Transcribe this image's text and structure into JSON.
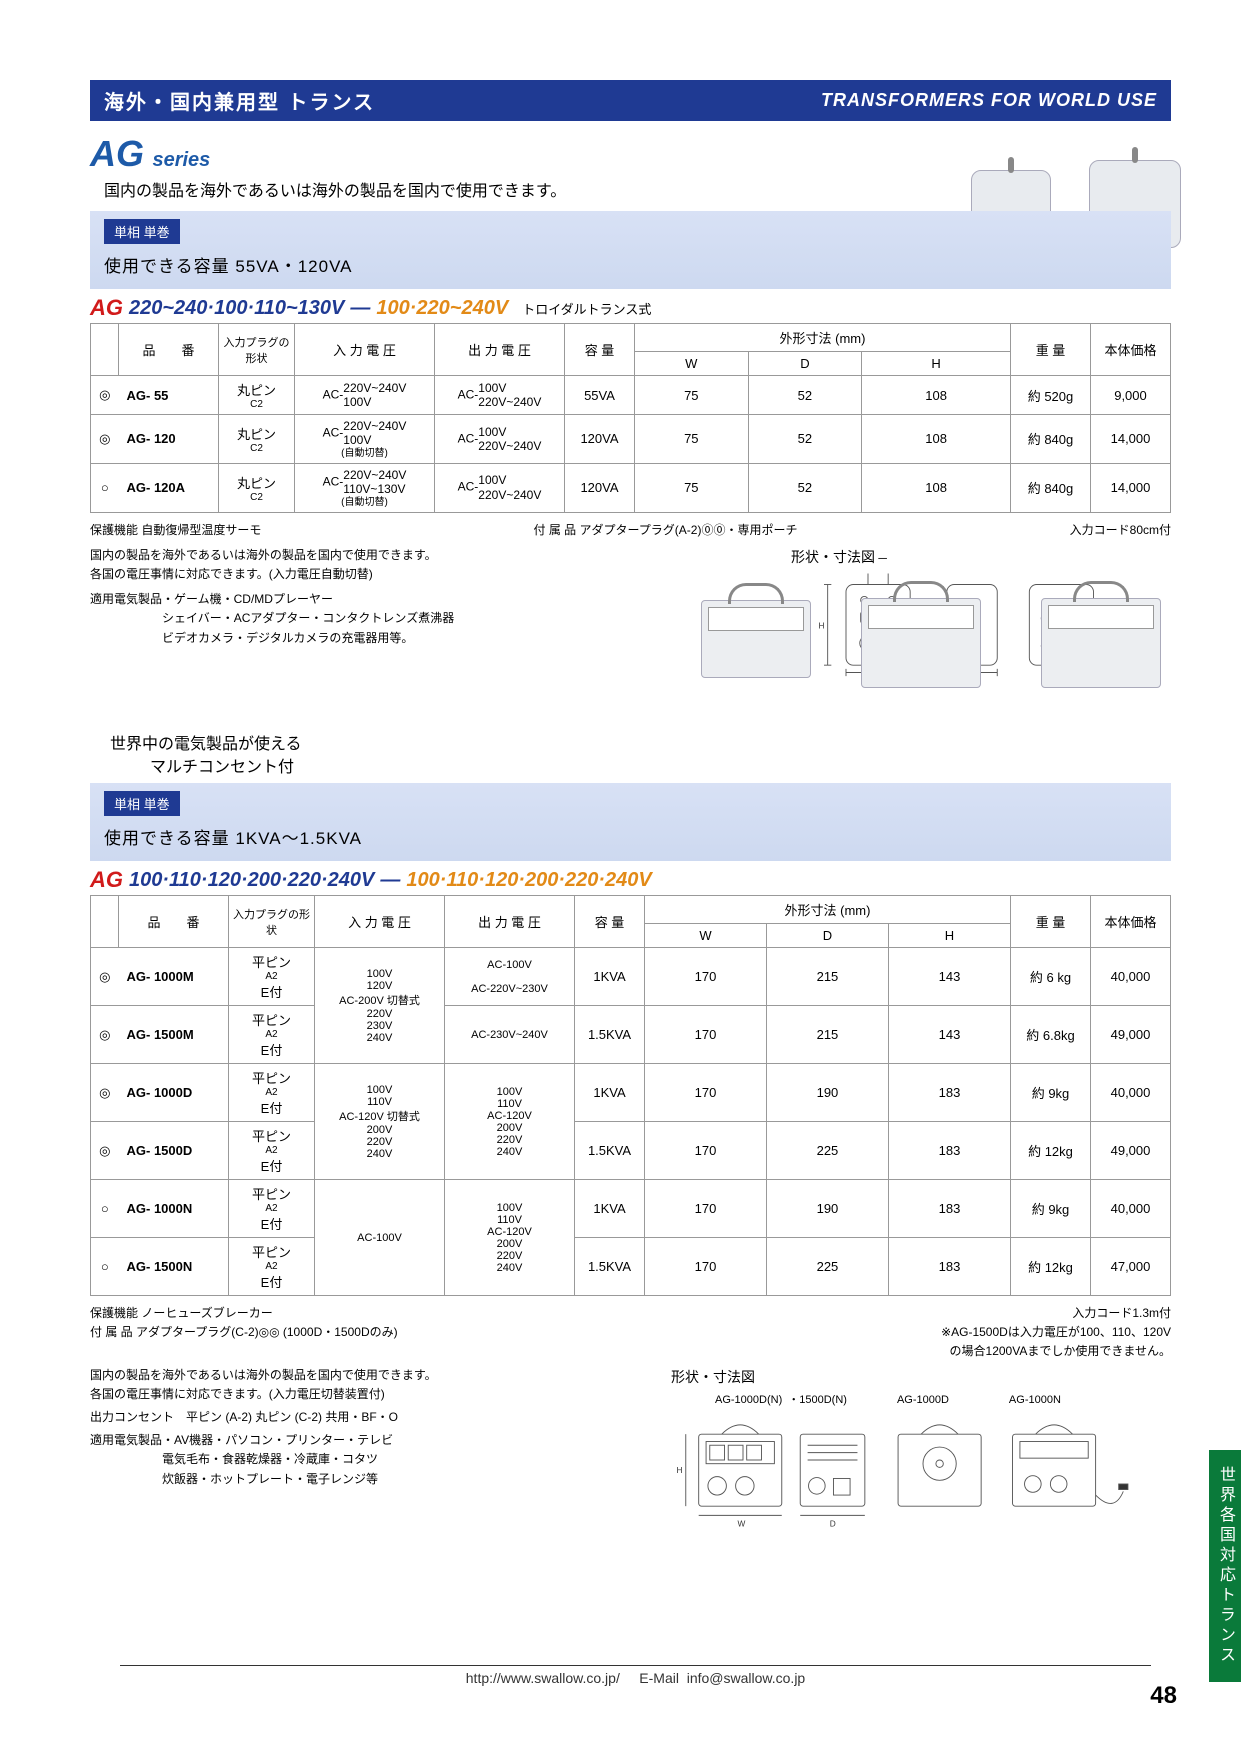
{
  "header": {
    "jp": "海外・国内兼用型 トランス",
    "en": "TRANSFORMERS FOR WORLD USE"
  },
  "series": {
    "ag": "AG",
    "word": "series",
    "sub": "国内の製品を海外であるいは海外の製品を国内で使用できます。"
  },
  "section1": {
    "chip": "単相 単巻",
    "capacity": "使用できる容量  55VA・120VA",
    "volt_ag": "AG",
    "volt_blue": "220~240·100·110~130V",
    "volt_dash": "—",
    "volt_orange": "100·220~240V",
    "volt_note": "トロイダルトランス式",
    "columns": {
      "model": "品　　番",
      "plug": "入力プラグの形状",
      "vin": "入 力 電 圧",
      "vout": "出 力 電 圧",
      "cap": "容 量",
      "dims": "外形寸法 (mm)",
      "w": "W",
      "d": "D",
      "h": "H",
      "weight": "重 量",
      "price": "本体価格"
    },
    "rows": [
      {
        "mark": "◎",
        "model": "AG- 55",
        "plug": "丸ピン",
        "plug2": "C2",
        "vin_prefix": "AC-",
        "vin1": "220V~240V",
        "vin2": "100V",
        "vin3": "",
        "vout_prefix": "AC-",
        "vout1": "100V",
        "vout2": "220V~240V",
        "cap": "55VA",
        "w": "75",
        "d": "52",
        "h": "108",
        "wt": "約 520g",
        "price": "9,000"
      },
      {
        "mark": "◎",
        "model": "AG- 120",
        "plug": "丸ピン",
        "plug2": "C2",
        "vin_prefix": "AC-",
        "vin1": "220V~240V",
        "vin2": "100V",
        "vin3": "(自動切替)",
        "vout_prefix": "AC-",
        "vout1": "100V",
        "vout2": "220V~240V",
        "cap": "120VA",
        "w": "75",
        "d": "52",
        "h": "108",
        "wt": "約 840g",
        "price": "14,000"
      },
      {
        "mark": "○",
        "model": "AG- 120A",
        "plug": "丸ピン",
        "plug2": "C2",
        "vin_prefix": "AC-",
        "vin1": "220V~240V",
        "vin2": "110V~130V",
        "vin3": "(自動切替)",
        "vout_prefix": "AC-",
        "vout1": "100V",
        "vout2": "220V~240V",
        "cap": "120VA",
        "w": "75",
        "d": "52",
        "h": "108",
        "wt": "約 840g",
        "price": "14,000"
      }
    ],
    "notes": {
      "l1a": "保護機能 自動復帰型温度サーモ",
      "l1b": "付 属 品 アダプタープラグ(A-2)⓪⓪・専用ポーチ",
      "l1c": "入力コード80cm付",
      "l2": "国内の製品を海外であるいは海外の製品を国内で使用できます。",
      "l3": "各国の電圧事情に対応できます。(入力電圧自動切替)",
      "l4": "適用電気製品・ゲーム機・CD/MDプレーヤー",
      "l5": "　　　　　　シェイバー・ACアダプター・コンタクトレンズ煮沸器",
      "l6": "　　　　　　ビデオカメラ・デジタルカメラの充電器用等。",
      "dims_title": "形状・寸法図"
    }
  },
  "section2": {
    "pre1": "世界中の電気製品が使える",
    "pre2": "マルチコンセント付",
    "chip": "単相 単巻",
    "capacity": "使用できる容量  1KVA～1.5KVA",
    "volt_ag": "AG",
    "volt_blue": "100·110·120·200·220·240V",
    "volt_dash": "—",
    "volt_orange": "100·110·120·200·220·240V",
    "columns": {
      "model": "品　　番",
      "plug": "入力プラグの形状",
      "vin": "入 力 電 圧",
      "vout": "出 力 電 圧",
      "cap": "容 量",
      "dims": "外形寸法 (mm)",
      "w": "W",
      "d": "D",
      "h": "H",
      "weight": "重 量",
      "price": "本体価格"
    },
    "vin_group1": "100V\n120V\nAC-200V 切替式\n220V\n230V\n240V",
    "vout_group1_a": "AC-100V",
    "vout_group1_b": "AC-220V~230V",
    "vout_group1_c": "AC-230V~240V",
    "vin_group2": "100V\n110V\nAC-120V 切替式\n200V\n220V\n240V",
    "vout_group2": "100V\n110V\nAC-120V\n200V\n220V\n240V",
    "vin_group3": "AC-100V",
    "vout_group3": "100V\n110V\nAC-120V\n200V\n220V\n240V",
    "rows": [
      {
        "mark": "◎",
        "model": "AG- 1000M",
        "plug": "平ピン",
        "plug2": "A2",
        "plug3": "E付",
        "cap": "1KVA",
        "w": "170",
        "d": "215",
        "h": "143",
        "wt": "約 6 kg",
        "price": "40,000"
      },
      {
        "mark": "◎",
        "model": "AG- 1500M",
        "plug": "平ピン",
        "plug2": "A2",
        "plug3": "E付",
        "cap": "1.5KVA",
        "w": "170",
        "d": "215",
        "h": "143",
        "wt": "約 6.8kg",
        "price": "49,000"
      },
      {
        "mark": "◎",
        "model": "AG- 1000D",
        "plug": "平ピン",
        "plug2": "A2",
        "plug3": "E付",
        "cap": "1KVA",
        "w": "170",
        "d": "190",
        "h": "183",
        "wt": "約 9kg",
        "price": "40,000"
      },
      {
        "mark": "◎",
        "model": "AG- 1500D",
        "plug": "平ピン",
        "plug2": "A2",
        "plug3": "E付",
        "cap": "1.5KVA",
        "w": "170",
        "d": "225",
        "h": "183",
        "wt": "約 12kg",
        "price": "49,000"
      },
      {
        "mark": "○",
        "model": "AG- 1000N",
        "plug": "平ピン",
        "plug2": "A2",
        "plug3": "E付",
        "cap": "1KVA",
        "w": "170",
        "d": "190",
        "h": "183",
        "wt": "約 9kg",
        "price": "40,000"
      },
      {
        "mark": "○",
        "model": "AG- 1500N",
        "plug": "平ピン",
        "plug2": "A2",
        "plug3": "E付",
        "cap": "1.5KVA",
        "w": "170",
        "d": "225",
        "h": "183",
        "wt": "約 12kg",
        "price": "47,000"
      }
    ],
    "notes": {
      "l1": "保護機能 ノーヒューズブレーカー",
      "l1r": "入力コード1.3m付",
      "l2": "付 属 品 アダプタープラグ(C-2)◎◎ (1000D・1500Dのみ)",
      "l2r": "※AG-1500Dは入力電圧が100、110、120V",
      "l2r2": "の場合1200VAまでしか使用できません。",
      "l3": "国内の製品を海外であるいは海外の製品を国内で使用できます。",
      "l4": "各国の電圧事情に対応できます。(入力電圧切替装置付)",
      "l5": "出力コンセント　平ピン (A-2) 丸ピン (C-2) 共用・BF・O",
      "l6": "適用電気製品・AV機器・パソコン・プリンター・テレビ",
      "l7": "　　　　　　電気毛布・食器乾燥器・冷蔵庫・コタツ",
      "l8": "　　　　　　炊飯器・ホットプレート・電子レンジ等",
      "dims_title": "形状・寸法図",
      "d1": "AG-1000D(N)",
      "d2": "・1500D(N)",
      "d3": "AG-1000D",
      "d4": "AG-1000N"
    }
  },
  "footer": {
    "url": "http://www.swallow.co.jp/",
    "email_lbl": "E-Mail",
    "email": "info@swallow.co.jp"
  },
  "page_num": "48",
  "side_tab": "世界各国対応トランス",
  "colors": {
    "blue": "#1f3a93",
    "orange": "#e28a17",
    "red": "#d11a1a",
    "green": "#0a7a3a"
  }
}
